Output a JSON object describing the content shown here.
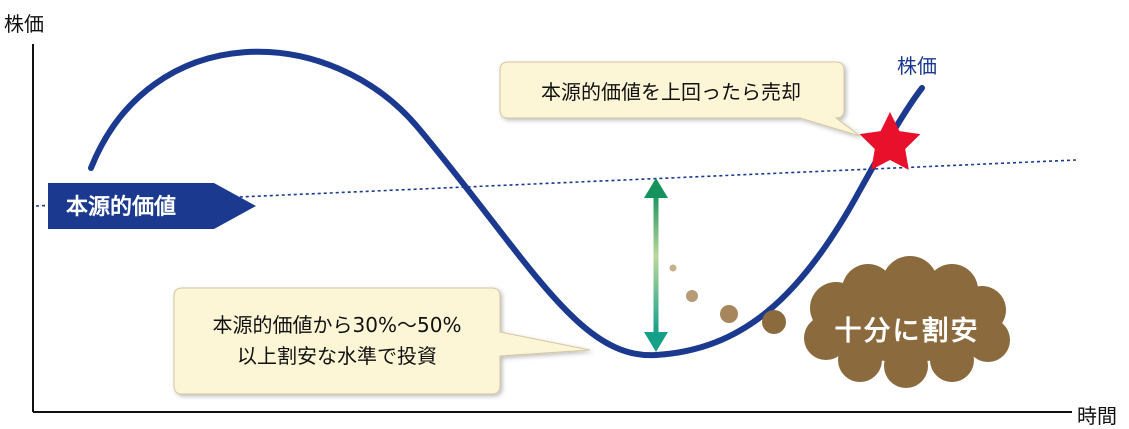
{
  "axes": {
    "y_label": "株価",
    "x_label": "時間"
  },
  "curve": {
    "label": "株価",
    "color": "#1b3a8f"
  },
  "intrinsic_value": {
    "tag_label": "本源的価値",
    "color": "#1b3a8f"
  },
  "sell_callout": {
    "text": "本源的価値を上回ったら売却",
    "marker_color": "#e8102a"
  },
  "buy_callout": {
    "line1": "本源的価値から30%〜50%",
    "line2": "以上割安な水準で投資"
  },
  "cheap_cloud": {
    "text": "十分に割安",
    "color": "#8b6a3e"
  },
  "discount_arrow": {
    "color": "#1a9a70"
  },
  "callout_fill": "#fdf6d6"
}
